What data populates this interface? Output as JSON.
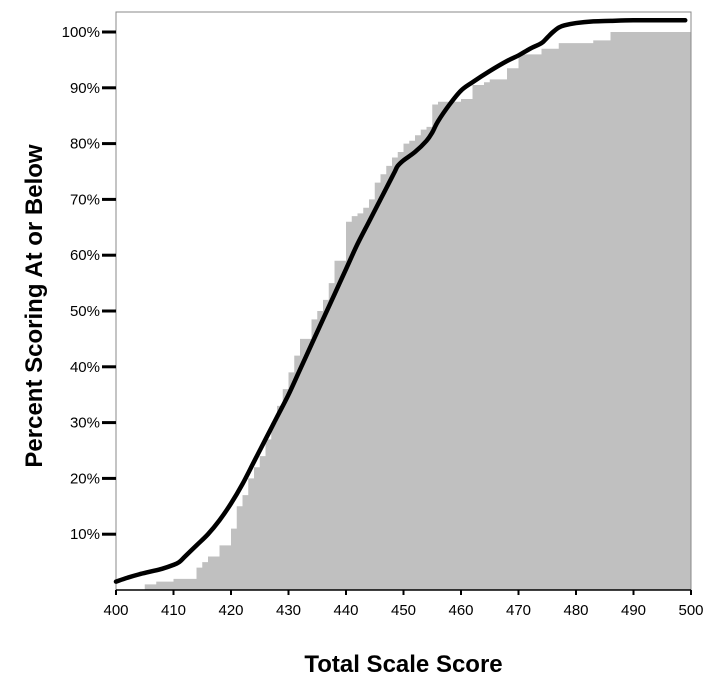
{
  "chart_data": {
    "type": "area",
    "title": "",
    "xlabel": "Total Scale Score",
    "ylabel": "Percent Scoring At or Below",
    "xlim": [
      400,
      500
    ],
    "ylim": [
      0,
      100
    ],
    "xticks": [
      400,
      410,
      420,
      430,
      440,
      450,
      460,
      470,
      480,
      490,
      500
    ],
    "xtick_labels": [
      "400",
      "410",
      "420",
      "430",
      "440",
      "450",
      "460",
      "470",
      "480",
      "490",
      "500"
    ],
    "yticks": [
      10,
      20,
      30,
      40,
      50,
      60,
      70,
      80,
      90,
      100
    ],
    "ytick_labels": [
      "10%",
      "20%",
      "30%",
      "40%",
      "50%",
      "60%",
      "70%",
      "80%",
      "90%",
      "100%"
    ],
    "grid": false,
    "colors": {
      "area_fill": "#c0c0c0",
      "curve": "#000000",
      "frame": "#888888"
    },
    "series": [
      {
        "type": "step",
        "x": [
          400,
          405,
          407,
          410,
          414,
          415,
          416,
          418,
          420,
          421,
          422,
          423,
          424,
          425,
          426,
          427,
          428,
          429,
          430,
          431,
          432,
          433,
          434,
          435,
          436,
          437,
          438,
          440,
          441,
          442,
          443,
          444,
          445,
          446,
          447,
          448,
          449,
          450,
          451,
          452,
          453,
          454,
          455,
          456,
          460,
          462,
          464,
          465,
          468,
          470,
          474,
          477,
          479,
          483,
          486,
          487,
          500
        ],
        "y": [
          0,
          1,
          1.5,
          2,
          4,
          5,
          6,
          8,
          11,
          15,
          17,
          20,
          22,
          24,
          27,
          30,
          33,
          36,
          39,
          42,
          45,
          45,
          48.5,
          50,
          52,
          55,
          59,
          66,
          67,
          67.5,
          68.5,
          70,
          73,
          74.5,
          76,
          77.5,
          78.5,
          80,
          80.5,
          81.5,
          82.5,
          83,
          87,
          87.5,
          88,
          90.5,
          91,
          91.5,
          93.5,
          96,
          97,
          98,
          98,
          98.5,
          100,
          100,
          100
        ]
      },
      {
        "type": "line",
        "x": [
          400,
          402,
          404,
          406,
          408,
          410,
          411,
          412,
          414,
          416,
          418,
          420,
          422,
          424,
          426,
          428,
          430,
          432,
          434,
          436,
          438,
          440,
          442,
          444,
          446,
          447,
          448,
          448.5,
          449,
          450,
          452,
          454,
          455,
          456,
          458,
          460,
          462,
          465,
          468,
          470,
          472,
          474,
          475,
          476,
          477,
          478,
          480,
          483,
          486,
          490,
          495,
          499
        ],
        "y": [
          1.5,
          2.2,
          2.8,
          3.3,
          3.8,
          4.5,
          5,
          6,
          8,
          10,
          12.5,
          15.5,
          19,
          23,
          27,
          31,
          35,
          39.5,
          44,
          48.5,
          53,
          57.5,
          62,
          66,
          70,
          72,
          74,
          75,
          76,
          77,
          78.5,
          80.5,
          82,
          84,
          87,
          89.5,
          91,
          93,
          94.8,
          95.8,
          97,
          98,
          99,
          100,
          100.8,
          101.2,
          101.6,
          101.9,
          102,
          102.1,
          102.1,
          102.1
        ]
      }
    ]
  }
}
